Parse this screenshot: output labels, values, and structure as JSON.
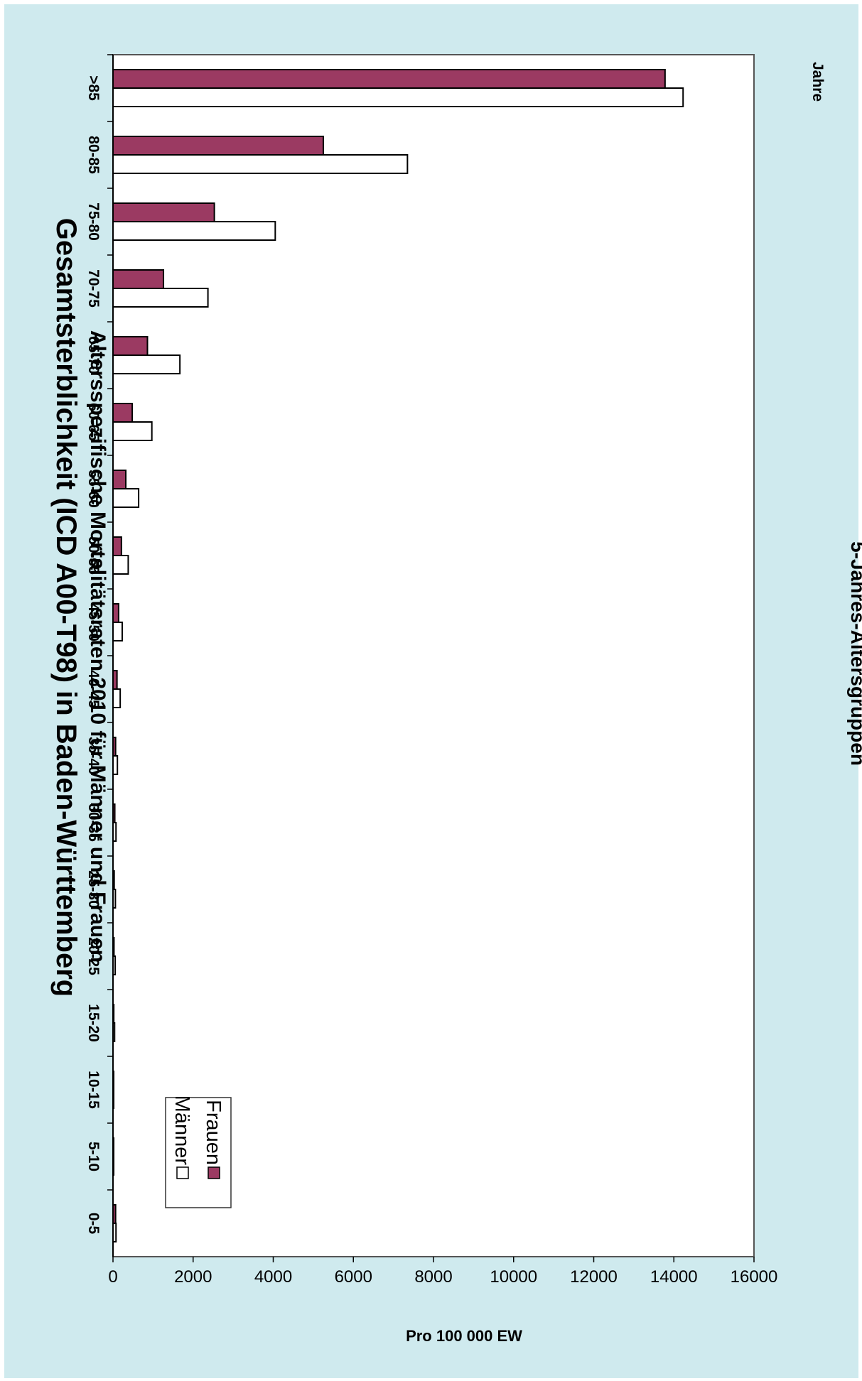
{
  "chart_data": {
    "type": "bar",
    "orientation": "rotated-90-clockwise",
    "title": "Gesamtsterblichkeit (ICD A00-T98) in Baden-Württemberg",
    "subtitle": "Altersspezifische Mortalitätsraten 2010 für Männer und Frauen",
    "xlabel": "5-Jahres-Altersgruppen",
    "xunit": "Jahre",
    "ylabel": "Pro 100 000 EW",
    "ylim": [
      0,
      16000
    ],
    "yticks": [
      "0",
      "2000",
      "4000",
      "6000",
      "8000",
      "10000",
      "12000",
      "14000",
      "16000"
    ],
    "categories": [
      "0-5",
      "5-10",
      "10-15",
      "15-20",
      "20-25",
      "25-30",
      "30-35",
      "35-40",
      "40-45",
      "45-50",
      "50-55",
      "55-60",
      "60-65",
      "65-70",
      "70-75",
      "75-80",
      "80-85",
      ">85"
    ],
    "series": [
      {
        "name": "Männer",
        "color": "#ffffff",
        "values": [
          75,
          15,
          10,
          40,
          55,
          60,
          75,
          110,
          180,
          230,
          380,
          640,
          970,
          1670,
          2370,
          4050,
          7350,
          14230
        ]
      },
      {
        "name": "Frauen",
        "color": "#9b3a62",
        "values": [
          65,
          10,
          8,
          20,
          25,
          30,
          45,
          65,
          100,
          140,
          210,
          320,
          480,
          860,
          1260,
          2530,
          5250,
          13780
        ]
      }
    ],
    "legend": {
      "placement": "bottom-left"
    },
    "grid": false
  }
}
